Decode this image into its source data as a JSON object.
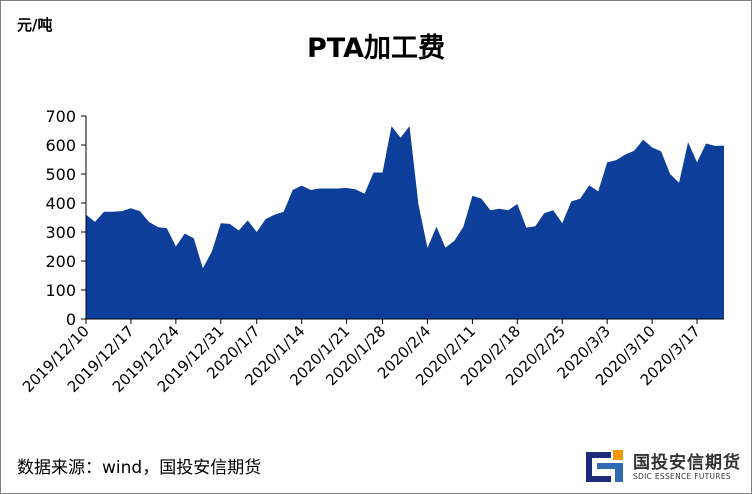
{
  "chart_data": {
    "type": "area",
    "title": "PTA加工费",
    "ylabel": "元/吨",
    "xlabel": "",
    "ylim": [
      0,
      700
    ],
    "yticks": [
      0,
      100,
      200,
      300,
      400,
      500,
      600,
      700
    ],
    "fill_color": "#0d3f9a",
    "grid": false,
    "x_tick_labels": [
      "2019/12/10",
      "2019/12/17",
      "2019/12/24",
      "2019/12/31",
      "2020/1/7",
      "2020/1/14",
      "2020/1/21",
      "2020/1/28",
      "2020/2/4",
      "2020/2/11",
      "2020/2/18",
      "2020/2/25",
      "2020/3/3",
      "2020/3/10",
      "2020/3/17"
    ],
    "series": [
      {
        "x": [
          "2019/12/10",
          "2019/12/11",
          "2019/12/12",
          "2019/12/13",
          "2019/12/16",
          "2019/12/17",
          "2019/12/18",
          "2019/12/19",
          "2019/12/20",
          "2019/12/23",
          "2019/12/24",
          "2019/12/25",
          "2019/12/26",
          "2019/12/27",
          "2019/12/30",
          "2019/12/31",
          "2020/1/2",
          "2020/1/3",
          "2020/1/6",
          "2020/1/7",
          "2020/1/8",
          "2020/1/9",
          "2020/1/10",
          "2020/1/13",
          "2020/1/14",
          "2020/1/15",
          "2020/1/16",
          "2020/1/17",
          "2020/1/20",
          "2020/1/21",
          "2020/1/22",
          "2020/1/23",
          "2020/1/24",
          "2020/1/28",
          "2020/1/29",
          "2020/1/30",
          "2020/1/31",
          "2020/2/3",
          "2020/2/4",
          "2020/2/5",
          "2020/2/6",
          "2020/2/7",
          "2020/2/10",
          "2020/2/11",
          "2020/2/12",
          "2020/2/13",
          "2020/2/14",
          "2020/2/17",
          "2020/2/18",
          "2020/2/19",
          "2020/2/20",
          "2020/2/21",
          "2020/2/24",
          "2020/2/25",
          "2020/2/26",
          "2020/2/27",
          "2020/2/28",
          "2020/3/2",
          "2020/3/3",
          "2020/3/4",
          "2020/3/5",
          "2020/3/6",
          "2020/3/9",
          "2020/3/10",
          "2020/3/11",
          "2020/3/12",
          "2020/3/13",
          "2020/3/16",
          "2020/3/17",
          "2020/3/18",
          "2020/3/19",
          "2020/3/20"
        ],
        "values": [
          360,
          335,
          370,
          370,
          372,
          382,
          372,
          335,
          317,
          313,
          250,
          295,
          278,
          175,
          232,
          330,
          328,
          305,
          340,
          300,
          345,
          360,
          370,
          445,
          460,
          445,
          450,
          450,
          450,
          452,
          447,
          432,
          505,
          505,
          665,
          625,
          665,
          395,
          245,
          318,
          246,
          270,
          318,
          425,
          415,
          375,
          380,
          375,
          397,
          315,
          320,
          365,
          375,
          330,
          405,
          415,
          461,
          440,
          540,
          548,
          567,
          580,
          618,
          592,
          578,
          500,
          470,
          610,
          540,
          605,
          597,
          598
        ]
      }
    ]
  },
  "source_text": "数据来源：wind，国投安信期货",
  "logo": {
    "name": "国投安信期货",
    "english": "SDIC ESSENCE FUTURES",
    "colors": {
      "orange": "#f39800",
      "navy": "#1d2b7a",
      "blue": "#2f6ab3"
    }
  }
}
